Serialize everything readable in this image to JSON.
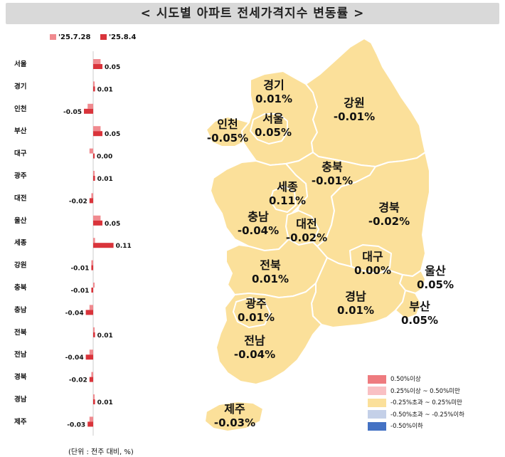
{
  "title": "< 시도별 아파트 전세가격지수 변동률 >",
  "legend": {
    "series_a": {
      "label": "'25.7.28",
      "color": "#f08a8f"
    },
    "series_b": {
      "label": "'25.8.4",
      "color": "#d9343b"
    }
  },
  "chart_data": {
    "type": "bar",
    "orientation": "horizontal",
    "categories": [
      "서울",
      "경기",
      "인천",
      "부산",
      "대구",
      "광주",
      "대전",
      "울산",
      "세종",
      "강원",
      "충북",
      "충남",
      "전북",
      "전남",
      "경북",
      "경남",
      "제주"
    ],
    "series": [
      {
        "name": "'25.7.28",
        "values": [
          0.04,
          0.0,
          -0.03,
          0.04,
          -0.02,
          0.0,
          -0.01,
          0.04,
          0.01,
          -0.01,
          0.0,
          -0.02,
          0.0,
          -0.02,
          -0.01,
          0.0,
          -0.02
        ]
      },
      {
        "name": "'25.8.4",
        "values": [
          0.05,
          0.01,
          -0.05,
          0.05,
          0.0,
          0.01,
          -0.02,
          0.05,
          0.11,
          -0.01,
          -0.01,
          -0.04,
          0.01,
          -0.04,
          -0.02,
          0.01,
          -0.03
        ]
      }
    ],
    "value_labels": [
      "0.05",
      "0.01",
      "-0.05",
      "0.05",
      "0.00",
      "0.01",
      "-0.02",
      "0.05",
      "0.11",
      "-0.01",
      "-0.01",
      "-0.04",
      "0.01",
      "-0.04",
      "-0.02",
      "0.01",
      "-0.03"
    ]
  },
  "unit_note": "(단위 : 전주 대비, %)",
  "map_regions": [
    {
      "name": "경기",
      "value": "0.01%"
    },
    {
      "name": "강원",
      "value": "-0.01%"
    },
    {
      "name": "인천",
      "value": "-0.05%"
    },
    {
      "name": "서울",
      "value": "0.05%"
    },
    {
      "name": "충북",
      "value": "-0.01%"
    },
    {
      "name": "세종",
      "value": "0.11%"
    },
    {
      "name": "경북",
      "value": "-0.02%"
    },
    {
      "name": "충남",
      "value": "-0.04%"
    },
    {
      "name": "대전",
      "value": "-0.02%"
    },
    {
      "name": "대구",
      "value": "0.00%"
    },
    {
      "name": "전북",
      "value": "0.01%"
    },
    {
      "name": "울산",
      "value": "0.05%"
    },
    {
      "name": "경남",
      "value": "0.01%"
    },
    {
      "name": "부산",
      "value": "0.05%"
    },
    {
      "name": "광주",
      "value": "0.01%"
    },
    {
      "name": "전남",
      "value": "-0.04%"
    },
    {
      "name": "제주",
      "value": "-0.03%"
    }
  ],
  "map_fill": "#fbe09a",
  "map_legend": [
    {
      "label": "0.50%이상",
      "color": "#ee7b7f"
    },
    {
      "label": "0.25%이상 ~ 0.50%미만",
      "color": "#f9c0c3"
    },
    {
      "label": "-0.25%초과 ~ 0.25%미만",
      "color": "#fbe09a"
    },
    {
      "label": "-0.50%초과 ~ -0.25%이하",
      "color": "#c4d0e8"
    },
    {
      "label": "-0.50%이하",
      "color": "#4472c4"
    }
  ]
}
